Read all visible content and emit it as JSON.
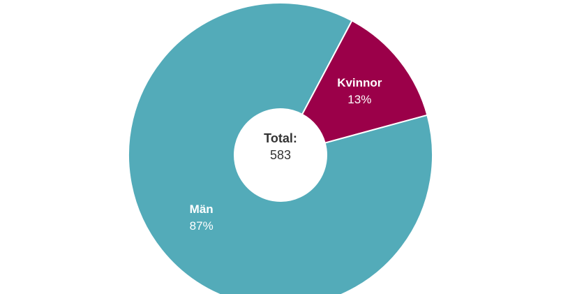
{
  "chart_data": {
    "type": "pie",
    "categories": [
      "Kvinnor",
      "Män"
    ],
    "values": [
      13,
      87
    ],
    "value_labels": [
      "13%",
      "87%"
    ],
    "colors": [
      "#9b0049",
      "#53abb9"
    ],
    "center_label": "Total:",
    "total": 583
  }
}
